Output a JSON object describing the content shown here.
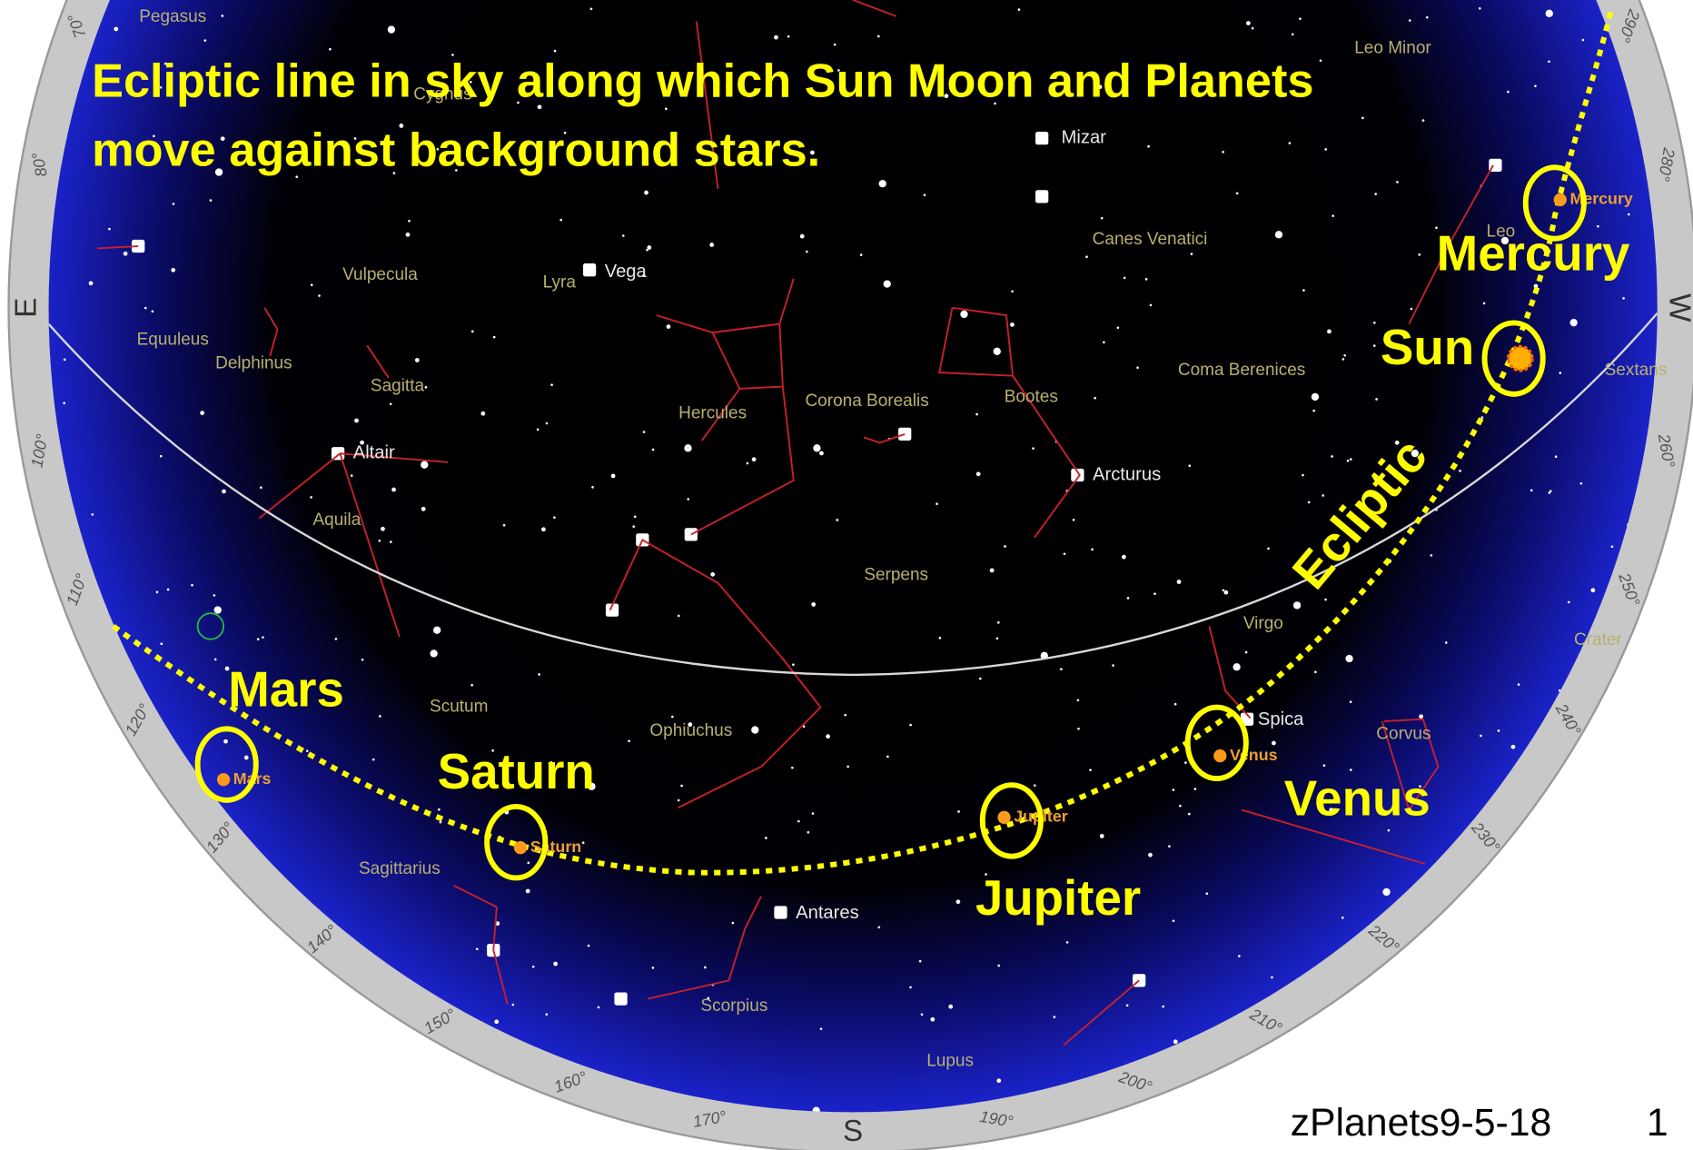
{
  "title": {
    "lines": [
      "Ecliptic line in sky along which Sun Moon and Planets",
      "move against background stars."
    ]
  },
  "ecliptic_label": "Ecliptic",
  "planets": [
    {
      "label": "Mercury"
    },
    {
      "label": "Sun"
    },
    {
      "label": "Mars"
    },
    {
      "label": "Saturn"
    },
    {
      "label": "Jupiter"
    },
    {
      "label": "Venus"
    }
  ],
  "planet_tags": [
    "Mercury",
    "Mars",
    "Saturn",
    "Jupiter",
    "Venus"
  ],
  "constellations": [
    "Pegasus",
    "Cygnus",
    "Lyra",
    "Vulpecula",
    "Equuleus",
    "Delphinus",
    "Sagitta",
    "Hercules",
    "Corona Borealis",
    "Bootes",
    "Canes Venatici",
    "Coma Berenices",
    "Leo Minor",
    "Leo",
    "Aquila",
    "Serpens",
    "Virgo",
    "Scutum",
    "Ophiuchus",
    "Corvus",
    "Crater",
    "Sagittarius",
    "Scorpius",
    "Lupus",
    "Sextans"
  ],
  "stars": [
    "Vega",
    "Mizar",
    "Altair",
    "Arcturus",
    "Spica",
    "Antares"
  ],
  "compass": [
    "E",
    "S",
    "W"
  ],
  "azimuth_labels": [
    "70°",
    "80°",
    "100°",
    "110°",
    "120°",
    "130°",
    "140°",
    "150°",
    "160°",
    "170°",
    "190°",
    "200°",
    "210°",
    "220°",
    "230°",
    "240°",
    "250°",
    "260°",
    "280°",
    "290°"
  ],
  "footer": {
    "file": "zPlanets9-5-18",
    "page": "1"
  }
}
